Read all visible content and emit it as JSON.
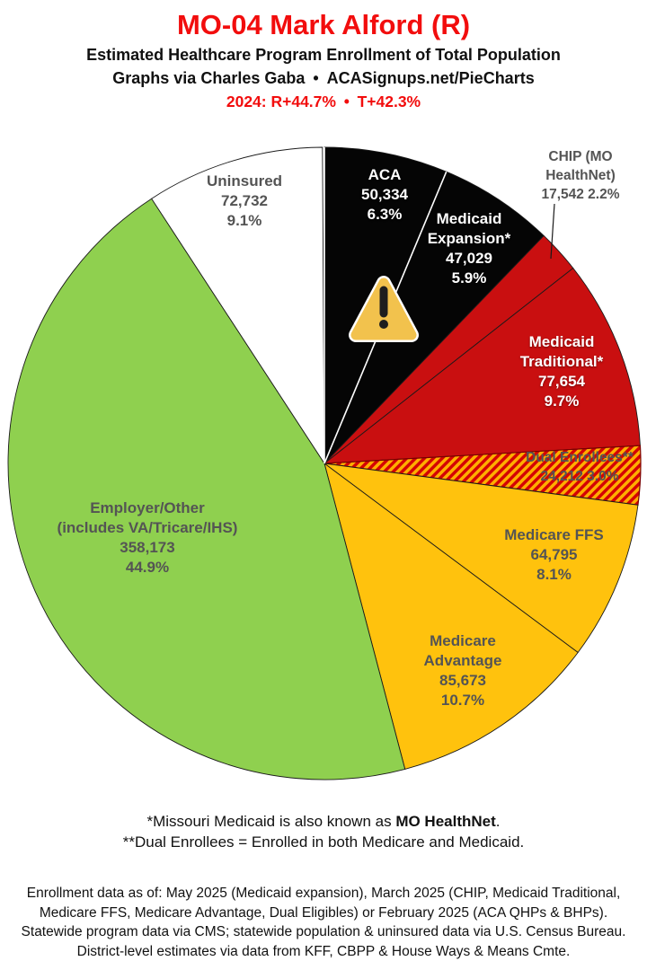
{
  "header": {
    "title": "MO-04 Mark Alford (R)",
    "title_color": "#f20d0d",
    "subtitle": "Estimated Healthcare Program Enrollment of Total Population",
    "credit": "Graphs via Charles Gaba • ACASignups.net/PieCharts",
    "partisan": "2024: R+44.7% • T+42.3%",
    "partisan_color": "#f20d0d"
  },
  "chart_data": {
    "type": "pie",
    "title": "Estimated Healthcare Program Enrollment of Total Population",
    "legend_position": "labels-on-slices",
    "slice_border_color": "#1a1a1a",
    "divider_color": "#ffffff",
    "slices": [
      {
        "key": "aca",
        "label": "ACA",
        "value": 50334,
        "pct": 6.3,
        "color": "#050505",
        "text_color": "#ffffff"
      },
      {
        "key": "expansion",
        "label": "Medicaid Expansion*",
        "value": 47029,
        "pct": 5.9,
        "color": "#050505",
        "text_color": "#ffffff"
      },
      {
        "key": "chip",
        "label": "CHIP (MO HealthNet)",
        "value": 17542,
        "pct": 2.2,
        "color": "#c90f10",
        "text_color": "#545454"
      },
      {
        "key": "traditional",
        "label": "Medicaid Traditional*",
        "value": 77654,
        "pct": 9.7,
        "color": "#c90f10",
        "text_color": "#ffffff"
      },
      {
        "key": "dual",
        "label": "Dual Enrollees**",
        "value": 24212,
        "pct": 3.0,
        "color": "hatch",
        "text_color": "#545454"
      },
      {
        "key": "ffs",
        "label": "Medicare FFS",
        "value": 64795,
        "pct": 8.1,
        "color": "#ffc20d",
        "text_color": "#545454"
      },
      {
        "key": "advantage",
        "label": "Medicare Advantage",
        "value": 85673,
        "pct": 10.7,
        "color": "#ffc20d",
        "text_color": "#545454"
      },
      {
        "key": "employer",
        "label": "Employer/Other (includes VA/Tricare/IHS)",
        "value": 358173,
        "pct": 44.9,
        "color": "#8fd04f",
        "text_color": "#545454"
      },
      {
        "key": "uninsured",
        "label": "Uninsured",
        "value": 72732,
        "pct": 9.1,
        "color": "#ffffff",
        "text_color": "#545454"
      }
    ],
    "hatch": {
      "stripe_red": "#d40404",
      "stripe_gold": "#ffae00",
      "border": "#7a0000"
    },
    "warning_icon": {
      "fill": "#f2c24d",
      "outline": "#ffffff",
      "mark": "#1e1e1e"
    }
  },
  "slice_labels": {
    "aca": {
      "color": "#ffffff",
      "lines": [
        "ACA",
        "50,334",
        "6.3%"
      ]
    },
    "expansion": {
      "color": "#ffffff",
      "lines": [
        "Medicaid",
        "Expansion*",
        "47,029",
        "5.9%"
      ]
    },
    "chip": {
      "color": "#545454",
      "lines": [
        "CHIP (MO",
        "HealthNet)",
        "17,542 2.2%"
      ]
    },
    "traditional": {
      "color": "#ffffff",
      "lines": [
        "Medicaid",
        "Traditional*",
        "77,654",
        "9.7%"
      ]
    },
    "dual": {
      "color": "#545454",
      "lines": [
        "Dual Enrollees**",
        "24,212 3.0%"
      ]
    },
    "ffs": {
      "color": "#545454",
      "lines": [
        "Medicare FFS",
        "64,795",
        "8.1%"
      ]
    },
    "advantage": {
      "color": "#545454",
      "lines": [
        "Medicare",
        "Advantage",
        "85,673",
        "10.7%"
      ]
    },
    "employer": {
      "color": "#545454",
      "lines": [
        "Employer/Other",
        "(includes VA/Tricare/IHS)",
        "358,173",
        "44.9%"
      ]
    },
    "uninsured": {
      "color": "#545454",
      "lines": [
        "Uninsured",
        "72,732",
        "9.1%"
      ]
    }
  },
  "footnotes": {
    "line1_prefix": "*Missouri Medicaid is also known as ",
    "line1_bold": "MO HealthNet",
    "line1_suffix": ".",
    "line2": "**Dual Enrollees = Enrolled in both Medicare and Medicaid."
  },
  "disclaimer": {
    "lines": [
      "Enrollment data as of: May 2025 (Medicaid expansion), March 2025 (CHIP, Medicaid Traditional,",
      "Medicare FFS, Medicare Advantage, Dual Eligibles) or February 2025 (ACA QHPs & BHPs).",
      "Statewide program data via CMS; statewide population & uninsured data via U.S. Census Bureau.",
      "District-level estimates via data from KFF, CBPP & House Ways & Means Cmte."
    ]
  }
}
